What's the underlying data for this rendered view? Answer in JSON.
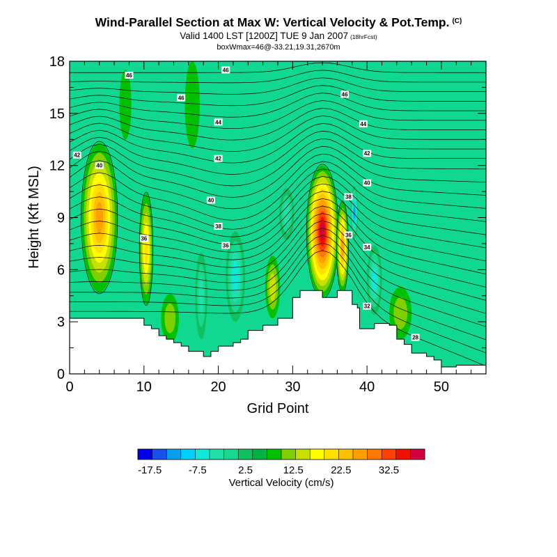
{
  "titles": {
    "main": "Wind-Parallel Section at Max W: Vertical Velocity & Pot.Temp.",
    "main_mark": "(C)",
    "valid": "Valid 1400 LST [1200Z] TUE 9 Jan 2007",
    "forecast": "(18hrFcst)",
    "box": "boxWmax=46@-33.21,19.31,2670m"
  },
  "chart_data": {
    "type": "heatmap",
    "title": "Wind-Parallel Section at Max W: Vertical Velocity & Pot.Temp.",
    "xlabel": "Grid Point",
    "ylabel": "Height (Kft MSL)",
    "xlim": [
      0,
      56
    ],
    "ylim": [
      0,
      18
    ],
    "xticks": [
      0,
      10,
      20,
      30,
      40,
      50
    ],
    "yticks": [
      0,
      3,
      6,
      9,
      12,
      15,
      18
    ],
    "terrain": {
      "x": [
        0,
        2,
        7,
        10,
        11,
        12,
        13,
        14,
        15,
        16,
        17,
        18,
        19,
        20,
        21,
        22,
        23,
        24,
        25,
        26,
        27,
        28,
        29,
        30,
        31,
        32,
        33,
        34,
        35,
        36,
        37,
        38,
        38.7,
        39,
        40,
        41,
        42,
        43,
        44,
        45,
        46,
        47,
        48,
        49,
        50,
        51,
        52,
        56
      ],
      "height": [
        3.2,
        3.2,
        3.2,
        2.8,
        2.6,
        2.2,
        2.0,
        1.8,
        1.6,
        1.3,
        1.3,
        1.0,
        1.3,
        1.6,
        1.6,
        1.8,
        2.0,
        2.5,
        2.5,
        2.8,
        2.8,
        3.2,
        3.2,
        4.4,
        4.8,
        4.8,
        4.8,
        4.4,
        4.4,
        4.8,
        4.8,
        4.0,
        3.8,
        2.6,
        2.6,
        2.9,
        2.9,
        2.8,
        2.0,
        1.7,
        1.2,
        1.2,
        1.0,
        0.8,
        0.4,
        0.4,
        0.5,
        0.3
      ]
    },
    "vertical_velocity_features": [
      {
        "x": 4,
        "z": 9,
        "rx": 2.4,
        "rz": 4.3,
        "value": 20
      },
      {
        "x": 10.3,
        "z": 7.2,
        "rx": 0.9,
        "rz": 3.2,
        "value": 13
      },
      {
        "x": 34,
        "z": 8.2,
        "rx": 2.1,
        "rz": 3.8,
        "value": 30
      },
      {
        "x": 36.7,
        "z": 7.3,
        "rx": 0.8,
        "rz": 2.6,
        "value": 18
      },
      {
        "x": 38.3,
        "z": 9.3,
        "rx": 0.5,
        "rz": 1.5,
        "value": -15
      },
      {
        "x": 22.3,
        "z": 5.6,
        "rx": 1.3,
        "rz": 2.6,
        "value": -10
      },
      {
        "x": 17.7,
        "z": 4.5,
        "rx": 0.8,
        "rz": 2.5,
        "value": -6
      },
      {
        "x": 29.2,
        "z": 9.2,
        "rx": 1.0,
        "rz": 1.5,
        "value": -6
      },
      {
        "x": 41,
        "z": 5.4,
        "rx": 1.0,
        "rz": 2.0,
        "value": -8
      },
      {
        "x": 27.3,
        "z": 5.0,
        "rx": 1.0,
        "rz": 1.8,
        "value": 8
      },
      {
        "x": 13.5,
        "z": 3.2,
        "rx": 1.2,
        "rz": 1.4,
        "value": 7
      },
      {
        "x": 7.5,
        "z": 15.5,
        "rx": 0.8,
        "rz": 2.0,
        "value": 4
      },
      {
        "x": 16.5,
        "z": 15.5,
        "rx": 1.0,
        "rz": 2.5,
        "value": 4
      },
      {
        "x": 44.5,
        "z": 3.5,
        "rx": 1.5,
        "rz": 1.5,
        "value": 6
      }
    ],
    "theta_contours": [
      {
        "label": "28",
        "x": 46.5,
        "z": 2.1
      },
      {
        "label": "32",
        "x": 40,
        "z": 3.9
      },
      {
        "label": "34",
        "x": 40,
        "z": 7.3
      },
      {
        "label": "36",
        "x": 10,
        "z": 7.8
      },
      {
        "label": "36",
        "x": 37.5,
        "z": 8.0
      },
      {
        "label": "36",
        "x": 21,
        "z": 7.4
      },
      {
        "label": "38",
        "x": 20,
        "z": 8.5
      },
      {
        "label": "38",
        "x": 37.5,
        "z": 10.2
      },
      {
        "label": "40",
        "x": 4,
        "z": 12.0
      },
      {
        "label": "40",
        "x": 19,
        "z": 10.0
      },
      {
        "label": "40",
        "x": 40,
        "z": 11.0
      },
      {
        "label": "42",
        "x": 1,
        "z": 12.6
      },
      {
        "label": "42",
        "x": 20,
        "z": 12.4
      },
      {
        "label": "42",
        "x": 40,
        "z": 12.7
      },
      {
        "label": "44",
        "x": 20,
        "z": 14.5
      },
      {
        "label": "44",
        "x": 39.5,
        "z": 14.4
      },
      {
        "label": "46",
        "x": 15,
        "z": 15.9
      },
      {
        "label": "46",
        "x": 37,
        "z": 16.1
      },
      {
        "label": "46",
        "x": 8,
        "z": 17.2
      },
      {
        "label": "46",
        "x": 21,
        "z": 17.5
      }
    ],
    "colorbar": {
      "label": "Vertical Velocity (cm/s)",
      "tick_labels": [
        "-17.5",
        "-7.5",
        "2.5",
        "12.5",
        "22.5",
        "32.5"
      ],
      "tick_values": [
        -17.5,
        -7.5,
        2.5,
        12.5,
        22.5,
        32.5
      ],
      "min": -20,
      "max": 40,
      "interval": 2.5,
      "colors": [
        "#0000ee",
        "#1850f0",
        "#08a0ee",
        "#00d0ff",
        "#10e8d8",
        "#20e0a8",
        "#18d890",
        "#10c060",
        "#00b040",
        "#00c000",
        "#80d000",
        "#c8e000",
        "#ffff00",
        "#ffe000",
        "#ffc000",
        "#ffa000",
        "#ff7800",
        "#ff4000",
        "#f01000",
        "#d00040"
      ]
    }
  }
}
